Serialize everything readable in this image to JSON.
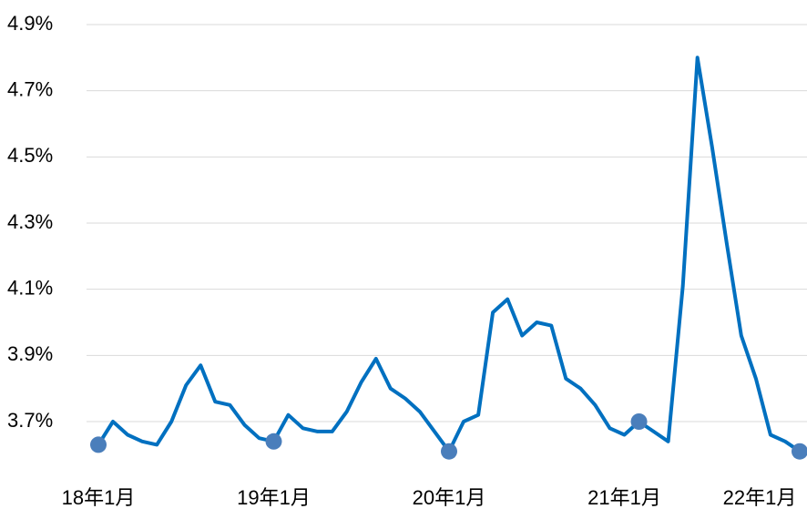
{
  "chart_data": {
    "type": "line",
    "categories": [
      "18年1月",
      null,
      null,
      null,
      null,
      null,
      null,
      null,
      null,
      null,
      null,
      null,
      "19年1月",
      null,
      null,
      null,
      null,
      null,
      null,
      null,
      null,
      null,
      null,
      null,
      "20年1月",
      null,
      null,
      null,
      null,
      null,
      null,
      null,
      null,
      null,
      null,
      null,
      "21年1月",
      null,
      null,
      null,
      null,
      null,
      null,
      null,
      null,
      null,
      null,
      null,
      "22年1月"
    ],
    "series": [
      {
        "color": "#0070c0",
        "values": [
          3.63,
          3.7,
          3.66,
          3.64,
          3.63,
          3.7,
          3.81,
          3.87,
          3.76,
          3.75,
          3.69,
          3.65,
          3.64,
          3.72,
          3.68,
          3.67,
          3.67,
          3.73,
          3.82,
          3.89,
          3.8,
          3.77,
          3.73,
          3.67,
          3.61,
          3.7,
          3.72,
          4.03,
          4.07,
          3.96,
          4.0,
          3.99,
          3.83,
          3.8,
          3.75,
          3.68,
          3.66,
          3.7,
          3.67,
          3.64,
          4.11,
          4.8,
          4.53,
          4.24,
          3.96,
          3.83,
          3.66,
          3.64,
          3.61
        ]
      }
    ],
    "highlight": [
      0,
      12,
      24,
      37,
      48
    ],
    "marker_color": "#4a7ebb",
    "ylim": [
      3.6,
      4.9
    ],
    "yticks": [
      {
        "value": 3.7,
        "label": "3.7%"
      },
      {
        "value": 3.9,
        "label": "3.9%"
      },
      {
        "value": 4.1,
        "label": "4.1%"
      },
      {
        "value": 4.3,
        "label": "4.3%"
      },
      {
        "value": 4.5,
        "label": "4.5%"
      },
      {
        "value": 4.7,
        "label": "4.7%"
      },
      {
        "value": 4.9,
        "label": "4.9%"
      }
    ],
    "grid": true
  }
}
